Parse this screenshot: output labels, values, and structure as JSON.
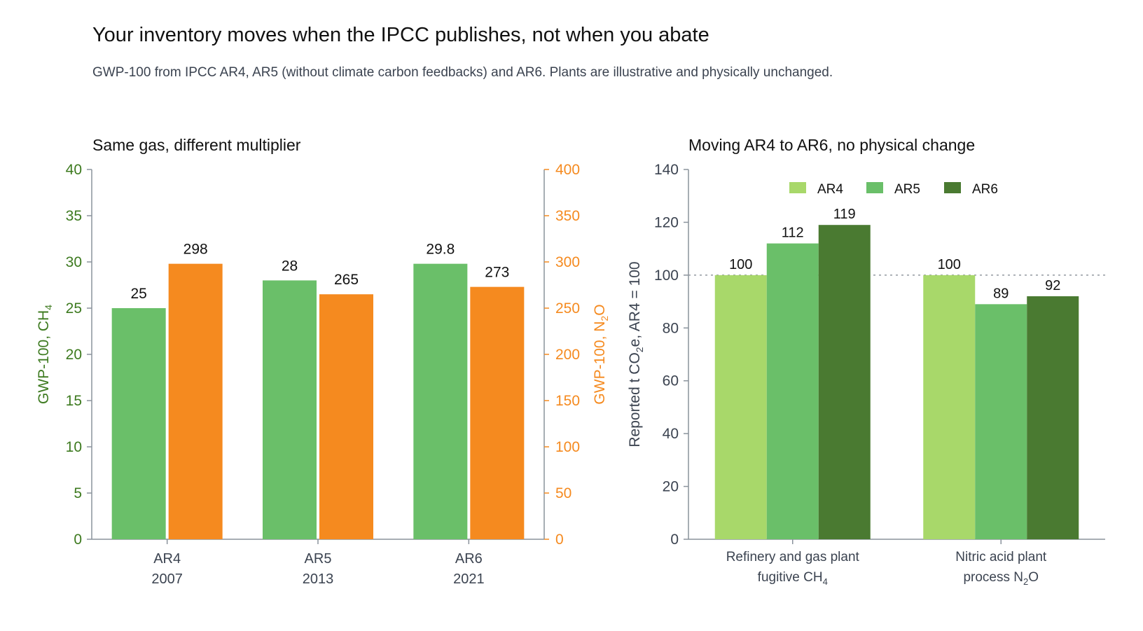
{
  "title": "Your inventory moves when the IPCC publishes, not when you abate",
  "subtitle": "GWP-100 from IPCC AR4, AR5 (without climate carbon feedbacks) and AR6. Plants are illustrative and physically unchanged.",
  "chart_data": [
    {
      "type": "bar",
      "title": "Same gas, different multiplier",
      "categories": [
        [
          "AR4",
          "2007"
        ],
        [
          "AR5",
          "2013"
        ],
        [
          "AR6",
          "2021"
        ]
      ],
      "series": [
        {
          "axis": "left",
          "color": "#6abf69",
          "values": [
            25,
            28,
            29.8
          ],
          "labels": [
            "25",
            "28",
            "29.8"
          ]
        },
        {
          "axis": "right",
          "color": "#f58a1f",
          "values": [
            298,
            265,
            273
          ],
          "labels": [
            "298",
            "265",
            "273"
          ]
        }
      ],
      "ylabel_left": "GWP-100, CH",
      "ylabel_left_sub": "4",
      "ylabel_right": "GWP-100, N",
      "ylabel_right_sub": "2",
      "ylabel_right_end": "O",
      "ylim_left": [
        0,
        40
      ],
      "yticks_left": [
        0,
        5,
        10,
        15,
        20,
        25,
        30,
        35,
        40
      ],
      "ylim_right": [
        0,
        400
      ],
      "yticks_right": [
        0,
        50,
        100,
        150,
        200,
        250,
        300,
        350,
        400
      ],
      "left_axis_color": "#3d7a1f",
      "right_axis_color": "#f58a1f",
      "grid": false
    },
    {
      "type": "bar",
      "title": "Moving AR4 to AR6, no physical change",
      "categories": [
        {
          "line1": "Refinery and gas plant",
          "line2": "fugitive CH",
          "sub": "4",
          "end": ""
        },
        {
          "line1": "Nitric acid plant",
          "line2": "process N",
          "sub": "2",
          "end": "O"
        }
      ],
      "series": [
        {
          "name": "AR4",
          "color": "#a8d86a",
          "values": [
            100,
            100
          ],
          "labels": [
            "100",
            "100"
          ]
        },
        {
          "name": "AR5",
          "color": "#6abf69",
          "values": [
            112,
            89
          ],
          "labels": [
            "112",
            "89"
          ]
        },
        {
          "name": "AR6",
          "color": "#4a7a31",
          "values": [
            119,
            92
          ],
          "labels": [
            "119",
            "92"
          ]
        }
      ],
      "ylabel": "Reported t CO",
      "ylabel_sub": "2",
      "ylabel_end": "e, AR4 = 100",
      "ylim": [
        0,
        140
      ],
      "yticks": [
        0,
        20,
        40,
        60,
        80,
        100,
        120,
        140
      ],
      "reference_line": 100,
      "legend_position": "top-center",
      "grid": false
    }
  ]
}
